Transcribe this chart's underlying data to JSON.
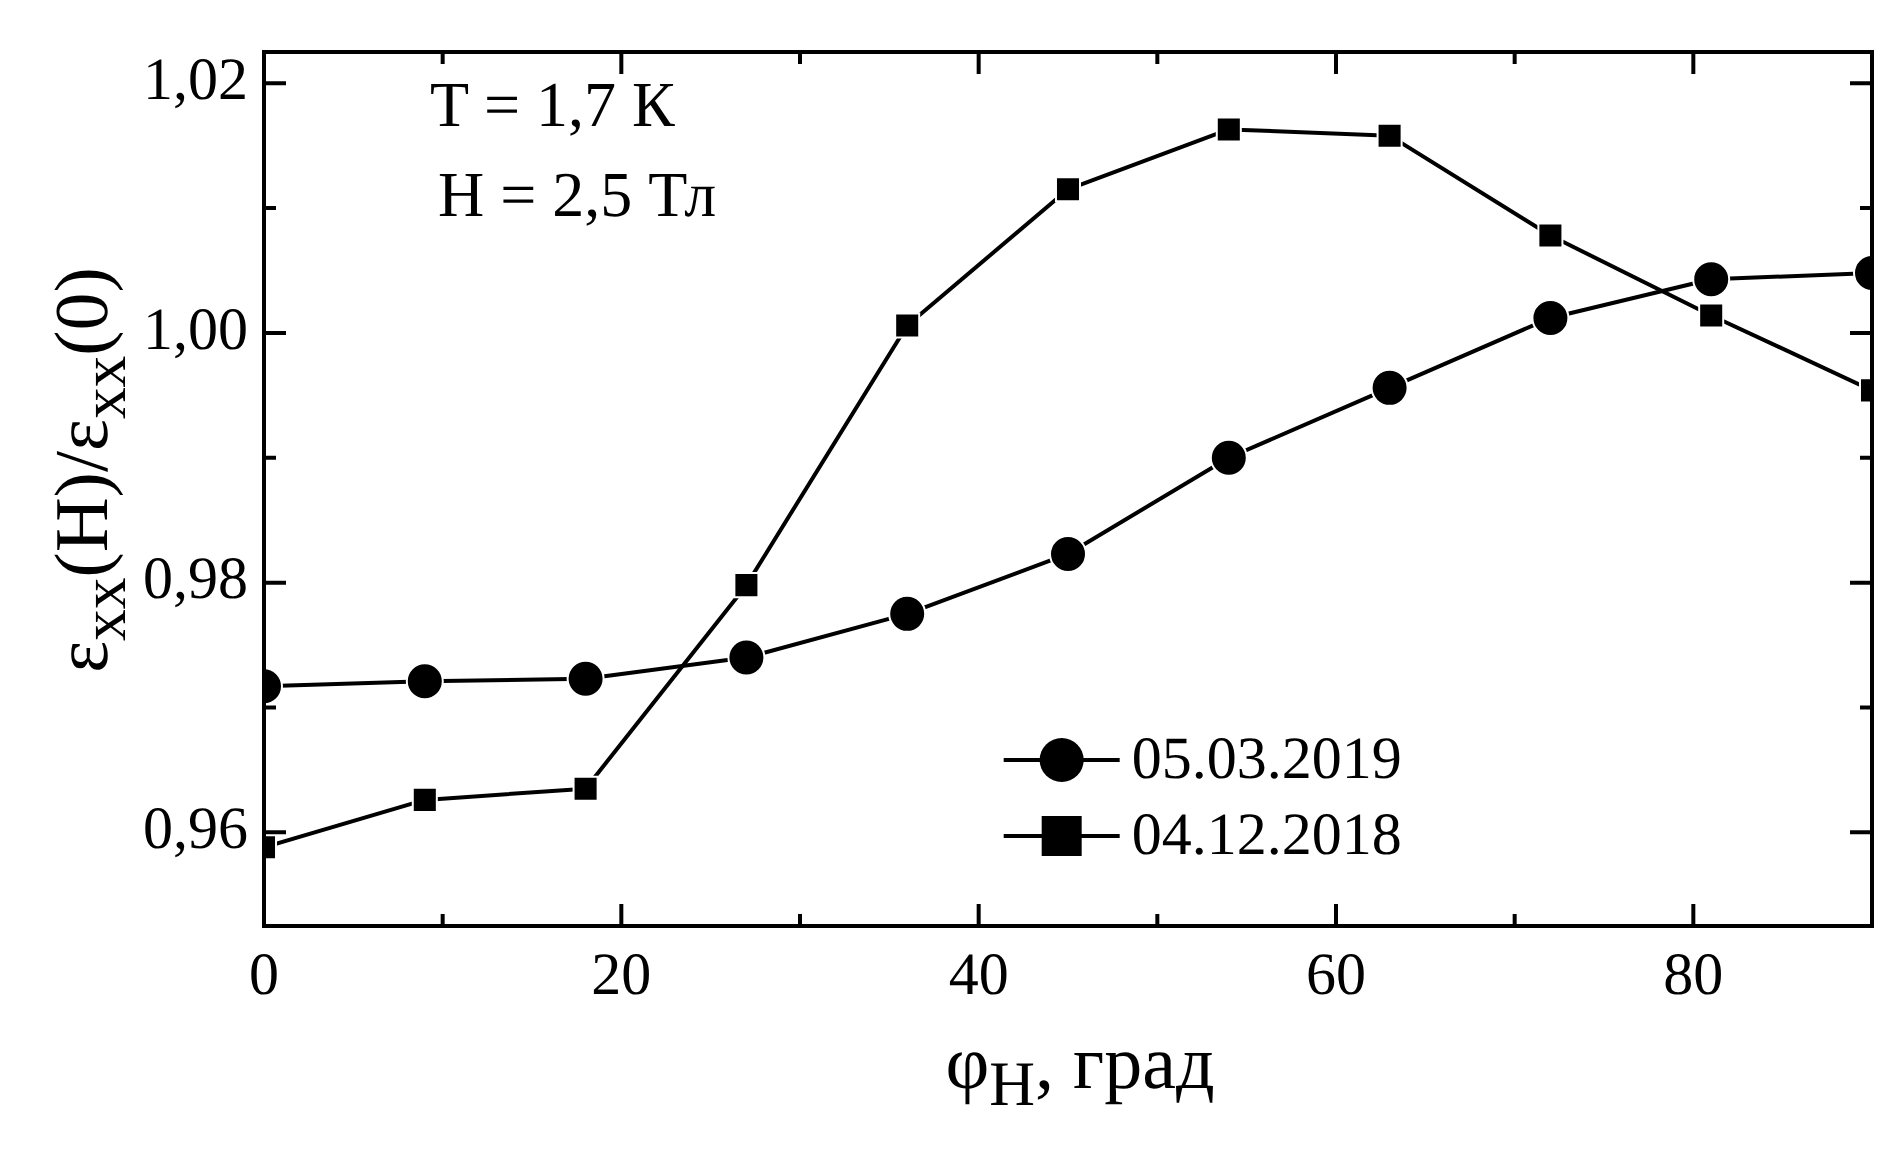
{
  "chart_data": {
    "type": "line",
    "xlabel": "φ$_{H}$, град",
    "ylabel": "ε$_{xx}$(H)/ε$_{xx}$(0)",
    "annotations": [
      "T = 1,7 К",
      "H = 2,5 Тл"
    ],
    "x": [
      0,
      9,
      18,
      27,
      36,
      45,
      54,
      63,
      72,
      81,
      90
    ],
    "xlim": [
      0,
      90
    ],
    "xticks": [
      0,
      {
        "value": 10,
        "label": null
      },
      20,
      {
        "value": 30,
        "label": null
      },
      40,
      {
        "value": 50,
        "label": null
      },
      60,
      {
        "value": 70,
        "label": null
      },
      80,
      {
        "value": 90,
        "label": null
      }
    ],
    "ylim": [
      0.9525,
      1.0225
    ],
    "yticks": [
      {
        "value": 0.96,
        "label": "0,96"
      },
      {
        "value": 0.97,
        "label": null
      },
      {
        "value": 0.98,
        "label": "0,98"
      },
      {
        "value": 0.99,
        "label": null
      },
      {
        "value": 1.0,
        "label": "1,00"
      },
      {
        "value": 1.01,
        "label": null
      },
      {
        "value": 1.02,
        "label": "1,02"
      }
    ],
    "grid": false,
    "legend": "bottom",
    "line_style": "solid",
    "series": [
      {
        "name": "05.03.2019",
        "color": "#000000",
        "marker": "circle",
        "values": [
          0.9717,
          0.9721,
          0.9723,
          0.974,
          0.9775,
          0.9823,
          0.99,
          0.9956,
          1.0012,
          1.0043,
          1.0048
        ]
      },
      {
        "name": "04.12.2018",
        "color": "#000000",
        "marker": "square",
        "values": [
          0.9588,
          0.9626,
          0.9635,
          0.9798,
          1.0006,
          1.0115,
          1.0163,
          1.0158,
          1.0078,
          1.0014,
          0.9954
        ]
      }
    ]
  }
}
